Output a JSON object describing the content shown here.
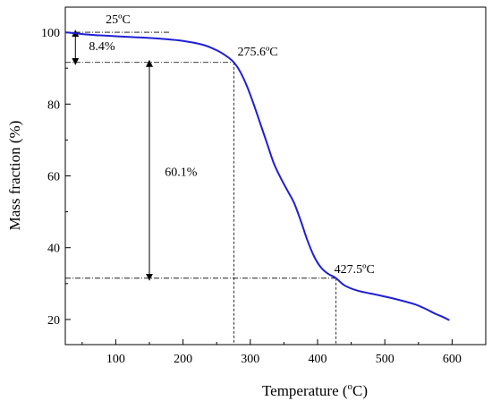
{
  "chart_data": {
    "type": "line",
    "xlabel_main": "Temperature (",
    "xlabel_sup": "o",
    "xlabel_end": "C)",
    "ylabel": "Mass fraction (%)",
    "xlim": [
      25,
      650
    ],
    "ylim": [
      13,
      107
    ],
    "x_ticks": [
      100,
      200,
      300,
      400,
      500,
      600
    ],
    "y_ticks": [
      20,
      40,
      60,
      80,
      100
    ],
    "grid": false,
    "legend": "none",
    "line_color": "#1f1fd6",
    "series": [
      {
        "x": [
          25,
          50,
          80,
          120,
          160,
          200,
          230,
          250,
          265,
          275.6,
          285,
          295,
          305,
          315,
          325,
          335,
          345,
          355,
          365,
          375,
          385,
          395,
          405,
          415,
          427.5,
          440,
          460,
          490,
          520,
          545,
          560,
          575,
          585,
          596
        ],
        "y": [
          100,
          99.5,
          99.1,
          98.7,
          98.3,
          97.6,
          96.5,
          95.0,
          93.3,
          91.6,
          89.0,
          85.0,
          80.0,
          74.5,
          69.0,
          63.5,
          59.5,
          56.0,
          52.5,
          47.5,
          42.0,
          37.5,
          34.5,
          32.8,
          31.5,
          29.5,
          28.0,
          26.8,
          25.5,
          24.2,
          23.0,
          21.6,
          20.8,
          19.8
        ]
      }
    ],
    "annotations": {
      "t1_label": "25ºC",
      "t2_label": "275.6ºC",
      "t3_label": "427.5ºC",
      "loss1_label": "8.4%",
      "loss2_label": "60.1%",
      "t1": 25,
      "t2": 275.6,
      "t3": 427.5,
      "m1": 100,
      "m2": 91.6,
      "m3": 31.5
    }
  }
}
